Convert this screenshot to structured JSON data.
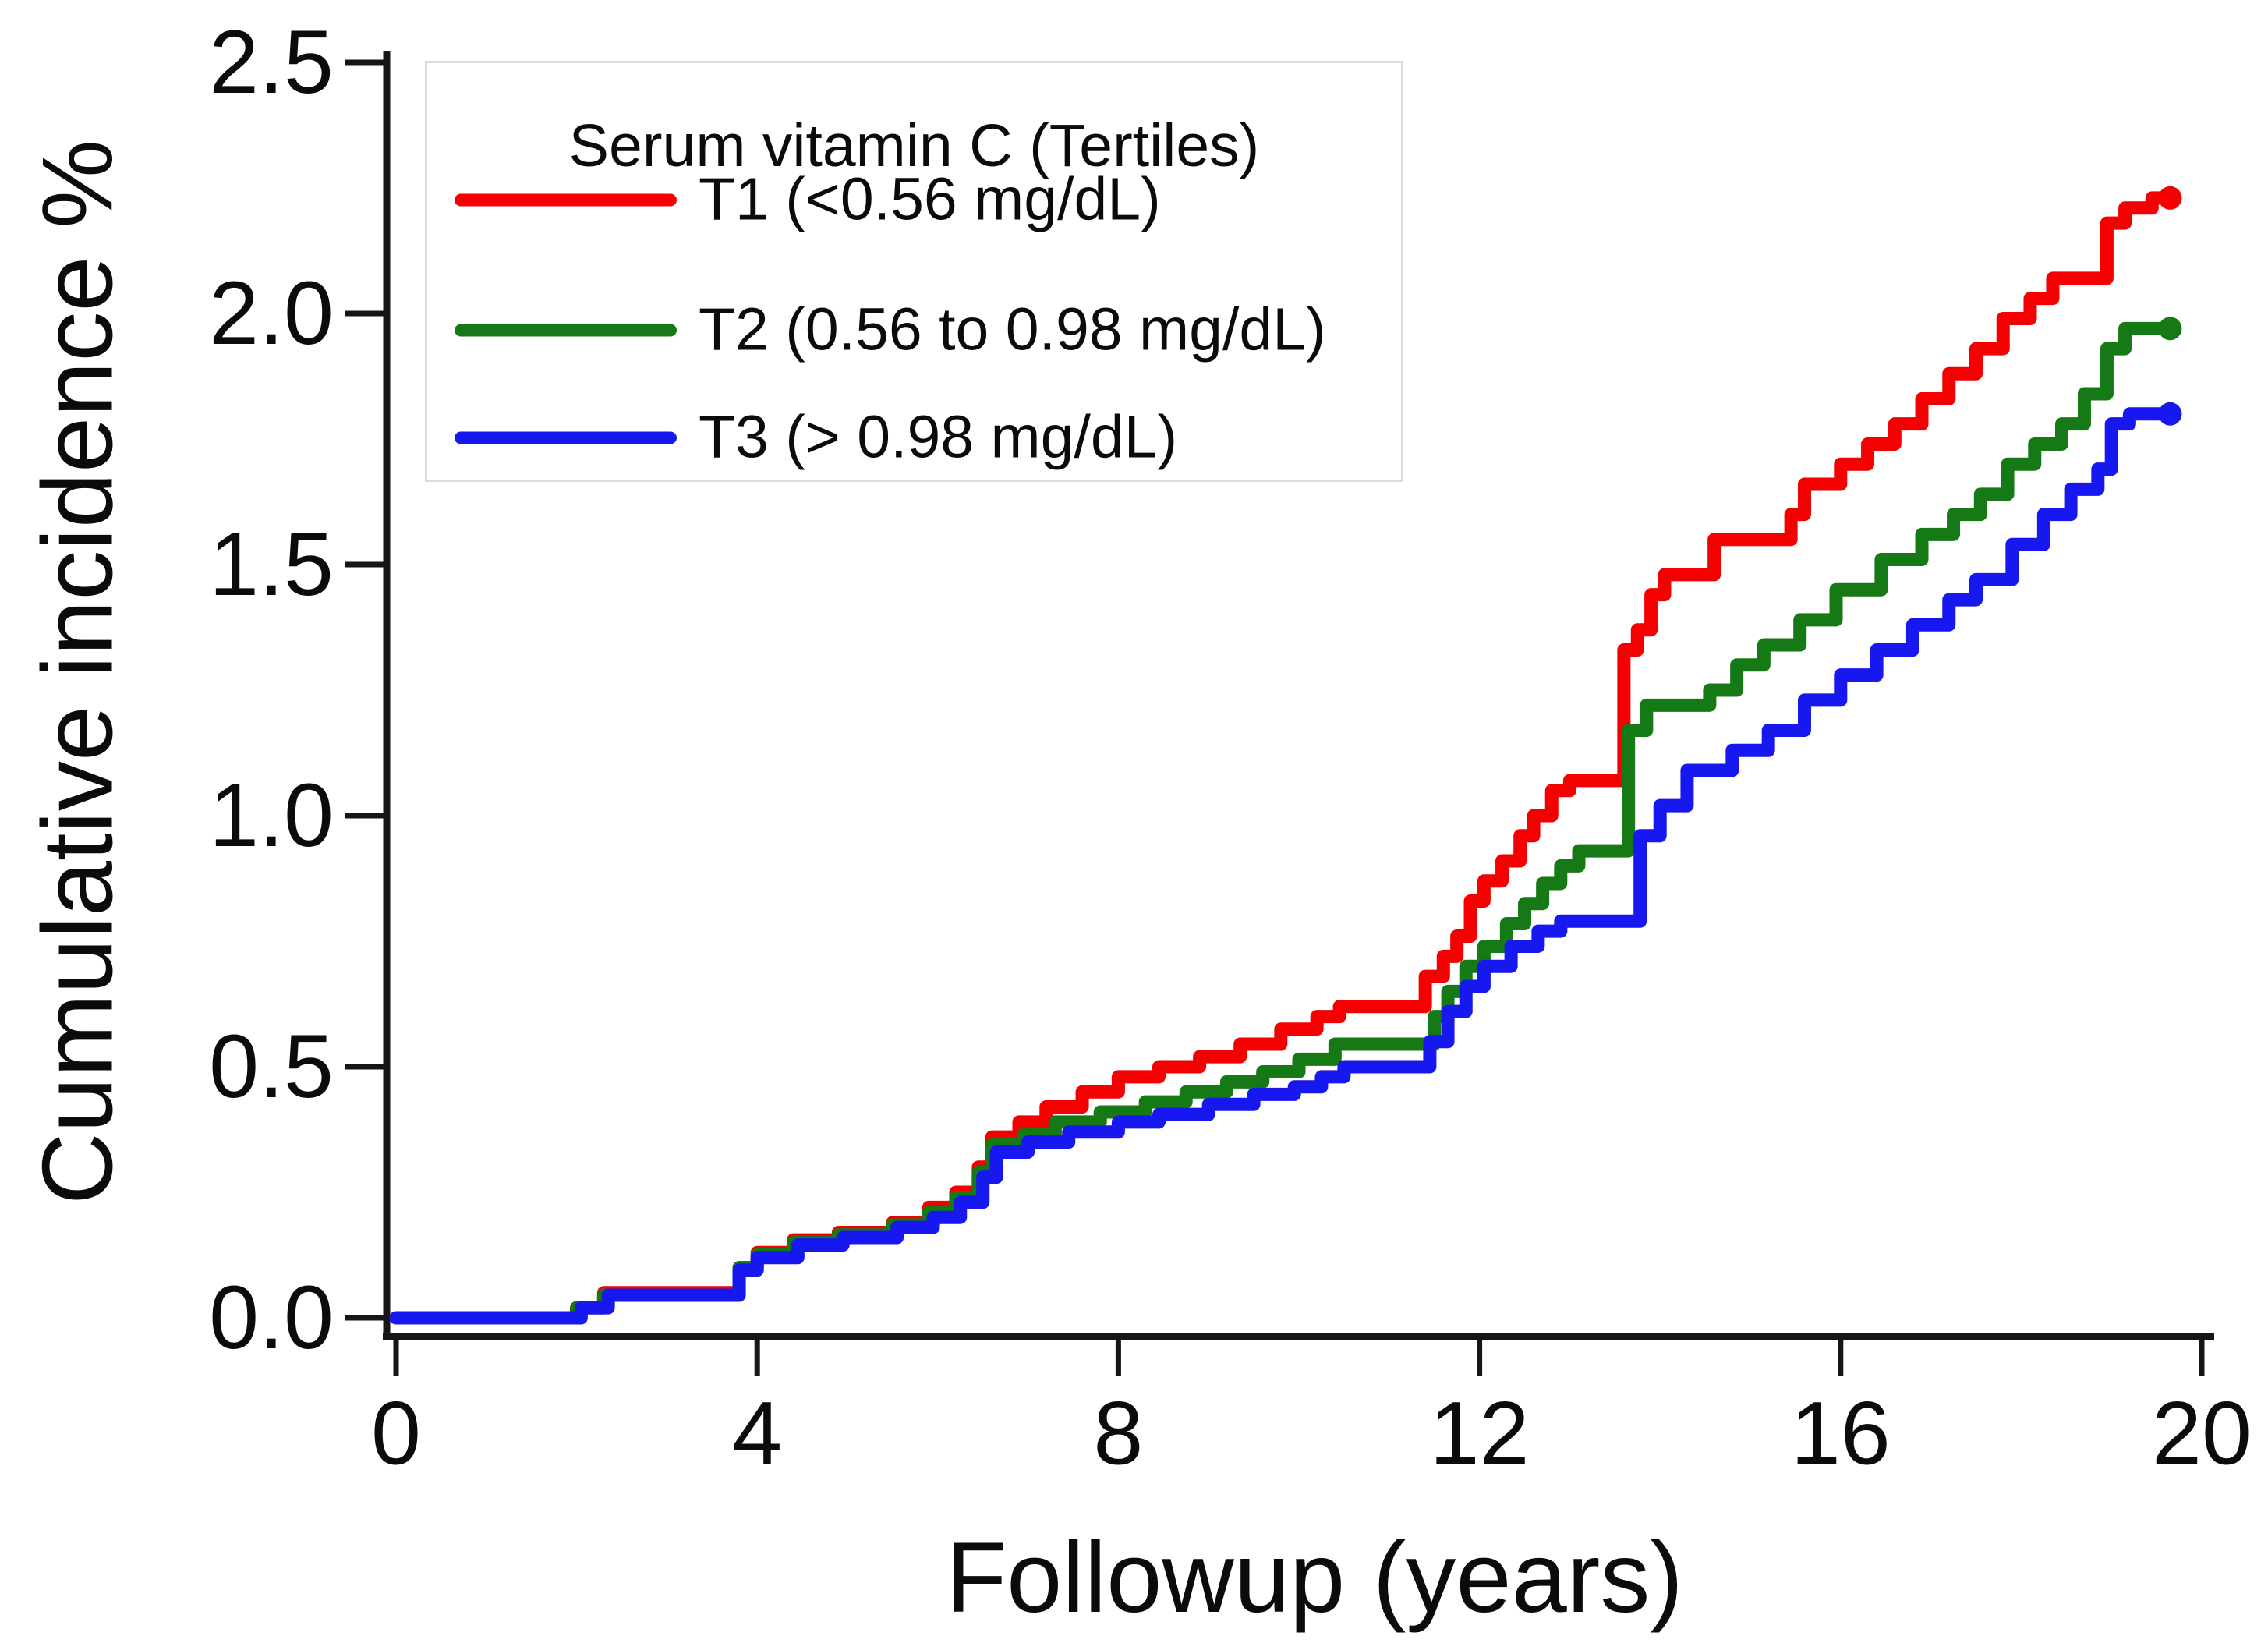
{
  "chart_data": {
    "type": "line",
    "subtype": "step-cumulative-incidence",
    "title": "",
    "xlabel": "Followup (years)",
    "ylabel": "Cumulative incidence %",
    "xlim": [
      0,
      20
    ],
    "ylim": [
      0,
      2.5
    ],
    "x_ticks": [
      "0",
      "4",
      "8",
      "12",
      "16",
      "20"
    ],
    "x_tick_values": [
      0,
      4,
      8,
      12,
      16,
      20
    ],
    "y_ticks": [
      "0.0",
      "0.5",
      "1.0",
      "1.5",
      "2.0",
      "2.5"
    ],
    "y_tick_values": [
      0,
      0.5,
      1.0,
      1.5,
      2.0,
      2.5
    ],
    "grid": false,
    "legend": {
      "title": "Serum vitamin C (Tertiles)",
      "position": "top-left",
      "items": [
        {
          "id": "t1",
          "label": "T1 (<0.56 mg/dL)",
          "color": "#f40000"
        },
        {
          "id": "t2",
          "label": "T2 (0.56 to 0.98 mg/dL)",
          "color": "#157a15"
        },
        {
          "id": "t3",
          "label": "T3 (> 0.98 mg/dL)",
          "color": "#1717ef"
        }
      ]
    },
    "series": [
      {
        "id": "t1",
        "name": "T1 (<0.56 mg/dL)",
        "color": "#f40000",
        "points": [
          [
            0,
            0
          ],
          [
            2.0,
            0.02
          ],
          [
            2.3,
            0.05
          ],
          [
            3.8,
            0.1
          ],
          [
            4.0,
            0.13
          ],
          [
            4.4,
            0.155
          ],
          [
            4.9,
            0.17
          ],
          [
            5.5,
            0.19
          ],
          [
            5.9,
            0.22
          ],
          [
            6.2,
            0.25
          ],
          [
            6.45,
            0.3
          ],
          [
            6.6,
            0.36
          ],
          [
            6.9,
            0.39
          ],
          [
            7.2,
            0.42
          ],
          [
            7.6,
            0.45
          ],
          [
            8.0,
            0.48
          ],
          [
            8.45,
            0.5
          ],
          [
            8.9,
            0.52
          ],
          [
            9.35,
            0.545
          ],
          [
            9.8,
            0.575
          ],
          [
            10.2,
            0.6
          ],
          [
            10.45,
            0.62
          ],
          [
            11.4,
            0.68
          ],
          [
            11.6,
            0.72
          ],
          [
            11.75,
            0.76
          ],
          [
            11.9,
            0.83
          ],
          [
            12.05,
            0.87
          ],
          [
            12.25,
            0.91
          ],
          [
            12.45,
            0.96
          ],
          [
            12.6,
            1.0
          ],
          [
            12.8,
            1.05
          ],
          [
            13.0,
            1.07
          ],
          [
            13.6,
            1.33
          ],
          [
            13.75,
            1.37
          ],
          [
            13.9,
            1.44
          ],
          [
            14.05,
            1.48
          ],
          [
            14.6,
            1.55
          ],
          [
            15.45,
            1.6
          ],
          [
            15.6,
            1.66
          ],
          [
            16.0,
            1.7
          ],
          [
            16.3,
            1.74
          ],
          [
            16.6,
            1.78
          ],
          [
            16.9,
            1.83
          ],
          [
            17.2,
            1.88
          ],
          [
            17.5,
            1.93
          ],
          [
            17.8,
            1.99
          ],
          [
            18.1,
            2.03
          ],
          [
            18.35,
            2.07
          ],
          [
            18.95,
            2.18
          ],
          [
            19.15,
            2.21
          ],
          [
            19.45,
            2.23
          ],
          [
            19.65,
            2.23
          ]
        ]
      },
      {
        "id": "t2",
        "name": "T2 (0.56 to 0.98 mg/dL)",
        "color": "#157a15",
        "points": [
          [
            0,
            0
          ],
          [
            2.0,
            0.02
          ],
          [
            2.3,
            0.045
          ],
          [
            3.8,
            0.1
          ],
          [
            4.0,
            0.125
          ],
          [
            4.4,
            0.15
          ],
          [
            4.9,
            0.165
          ],
          [
            5.5,
            0.185
          ],
          [
            5.9,
            0.21
          ],
          [
            6.2,
            0.24
          ],
          [
            6.45,
            0.29
          ],
          [
            6.6,
            0.345
          ],
          [
            6.95,
            0.365
          ],
          [
            7.3,
            0.39
          ],
          [
            7.8,
            0.41
          ],
          [
            8.3,
            0.43
          ],
          [
            8.75,
            0.45
          ],
          [
            9.2,
            0.47
          ],
          [
            9.6,
            0.49
          ],
          [
            10.0,
            0.515
          ],
          [
            10.4,
            0.545
          ],
          [
            11.5,
            0.6
          ],
          [
            11.65,
            0.65
          ],
          [
            11.85,
            0.7
          ],
          [
            12.05,
            0.74
          ],
          [
            12.3,
            0.785
          ],
          [
            12.5,
            0.825
          ],
          [
            12.7,
            0.865
          ],
          [
            12.9,
            0.9
          ],
          [
            13.1,
            0.93
          ],
          [
            13.65,
            1.17
          ],
          [
            13.85,
            1.22
          ],
          [
            14.55,
            1.25
          ],
          [
            14.85,
            1.3
          ],
          [
            15.15,
            1.34
          ],
          [
            15.55,
            1.39
          ],
          [
            15.95,
            1.45
          ],
          [
            16.45,
            1.51
          ],
          [
            16.9,
            1.56
          ],
          [
            17.25,
            1.6
          ],
          [
            17.55,
            1.64
          ],
          [
            17.85,
            1.7
          ],
          [
            18.15,
            1.74
          ],
          [
            18.45,
            1.78
          ],
          [
            18.7,
            1.84
          ],
          [
            18.95,
            1.93
          ],
          [
            19.15,
            1.97
          ],
          [
            19.65,
            1.97
          ]
        ]
      },
      {
        "id": "t3",
        "name": "T3 (> 0.98 mg/dL)",
        "color": "#1717ef",
        "points": [
          [
            0,
            0
          ],
          [
            2.05,
            0.02
          ],
          [
            2.35,
            0.045
          ],
          [
            3.8,
            0.095
          ],
          [
            4.0,
            0.12
          ],
          [
            4.45,
            0.145
          ],
          [
            4.95,
            0.16
          ],
          [
            5.55,
            0.18
          ],
          [
            5.95,
            0.2
          ],
          [
            6.25,
            0.23
          ],
          [
            6.5,
            0.28
          ],
          [
            6.65,
            0.33
          ],
          [
            7.0,
            0.35
          ],
          [
            7.45,
            0.37
          ],
          [
            8.0,
            0.39
          ],
          [
            8.45,
            0.405
          ],
          [
            9.0,
            0.425
          ],
          [
            9.5,
            0.445
          ],
          [
            9.95,
            0.46
          ],
          [
            10.25,
            0.48
          ],
          [
            10.5,
            0.5
          ],
          [
            11.45,
            0.55
          ],
          [
            11.65,
            0.61
          ],
          [
            11.85,
            0.66
          ],
          [
            12.05,
            0.7
          ],
          [
            12.35,
            0.74
          ],
          [
            12.65,
            0.77
          ],
          [
            12.9,
            0.79
          ],
          [
            13.78,
            0.96
          ],
          [
            14.0,
            1.02
          ],
          [
            14.3,
            1.09
          ],
          [
            14.8,
            1.13
          ],
          [
            15.2,
            1.17
          ],
          [
            15.6,
            1.23
          ],
          [
            16.0,
            1.28
          ],
          [
            16.4,
            1.33
          ],
          [
            16.8,
            1.38
          ],
          [
            17.2,
            1.43
          ],
          [
            17.5,
            1.47
          ],
          [
            17.9,
            1.54
          ],
          [
            18.25,
            1.6
          ],
          [
            18.55,
            1.65
          ],
          [
            18.85,
            1.69
          ],
          [
            19.0,
            1.78
          ],
          [
            19.2,
            1.8
          ],
          [
            19.65,
            1.8
          ]
        ]
      }
    ]
  },
  "colors": {
    "axis": "#161616",
    "text": "#0b0b0b",
    "legend_border": "#dcdcdc",
    "background": "#ffffff"
  }
}
